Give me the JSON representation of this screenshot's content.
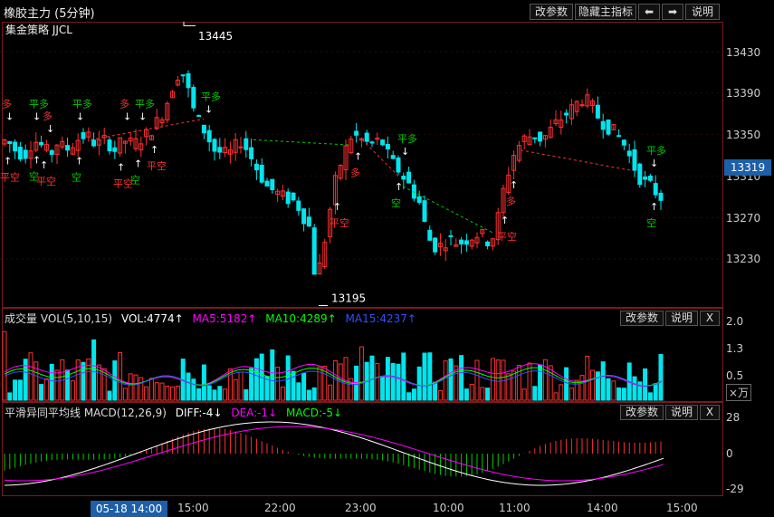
{
  "header": {
    "title": "橡胶主力 (5分钟)",
    "btn_params": "改参数",
    "btn_hide": "隐藏主指标",
    "btn_left": "⬅",
    "btn_right": "➡",
    "btn_help": "说明"
  },
  "main_panel": {
    "strategy_label": "集金策略 JJCL",
    "high_label": "13445",
    "low_label": "13195",
    "current_price": "13319",
    "y_ticks": [
      "13430",
      "13390",
      "13350",
      "13310",
      "13270",
      "13230"
    ],
    "signal_buy_short": "平空",
    "signal_sell_long": "平多",
    "signal_long": "多",
    "signal_short": "空"
  },
  "volume_panel": {
    "title": "成交量 VOL(5,10,15)",
    "vol": "VOL:4774↑",
    "ma5": "MA5:5182↑",
    "ma10": "MA10:4289↑",
    "ma15": "MA15:4237↑",
    "btn_params": "改参数",
    "btn_help": "说明",
    "btn_close": "X",
    "y_ticks": [
      "2.0",
      "1.3",
      "0.5"
    ],
    "unit": "×万",
    "colors": {
      "ma5": "#ff00ff",
      "ma10": "#00ff00",
      "ma15": "#3050ff"
    }
  },
  "macd_panel": {
    "title": "平滑异同平均线 MACD(12,26,9)",
    "diff": "DIFF:-4↓",
    "dea": "DEA:-1↓",
    "macd": "MACD:-5↓",
    "btn_params": "改参数",
    "btn_help": "说明",
    "btn_close": "X",
    "y_ticks": [
      "28",
      "0",
      "-29"
    ]
  },
  "time_axis": {
    "cursor": "05-18 14:00",
    "labels": [
      "15:00",
      "22:00",
      "23:00",
      "10:00",
      "11:00",
      "14:00",
      "15:00"
    ]
  },
  "colors": {
    "up": "#ff3030",
    "down": "#00e5ee",
    "buy": "#ff3030",
    "sell": "#00cc00"
  }
}
